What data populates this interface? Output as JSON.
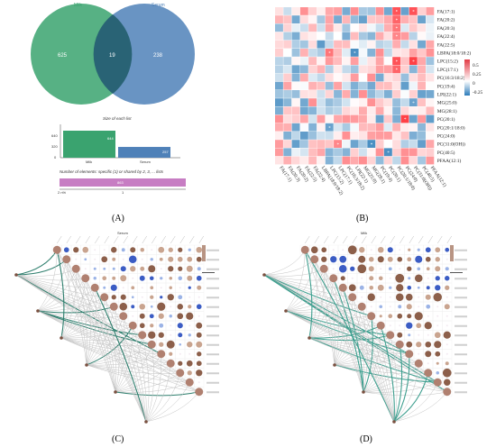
{
  "captions": {
    "a": "(A)",
    "b": "(B)",
    "c": "(C)",
    "d": "(D)"
  },
  "panel_a": {
    "venn": {
      "left_label": "Milk",
      "right_label": "Serum",
      "left_only": "625",
      "overlap": "19",
      "right_only": "238",
      "left_color": "#3aa36f",
      "right_color": "#4f81b8"
    },
    "size_bars": {
      "title": "Size of each list",
      "y_ticks": [
        "640",
        "320",
        "0"
      ],
      "bars": [
        {
          "label": "Milk",
          "value": 644,
          "value_text": "644",
          "color": "#3aa36f"
        },
        {
          "label": "Serum",
          "value": 257,
          "value_text": "257",
          "color": "#4f81b8"
        }
      ]
    },
    "overlap_bar": {
      "title": "Number of elements: specific (1) or shared by 2, 3, ... lists",
      "axis_label": "2 n%",
      "axis_tick": "1",
      "bar_text": "863",
      "color": "#c77dc3"
    }
  },
  "panel_b": {
    "rows": [
      "FA(17:1)",
      "FA(20:2)",
      "FA(20:3)",
      "FA(22:4)",
      "FA(22:5)",
      "LBPA(18:0/18:2)",
      "LPC(15:2)",
      "LPC(17:1)",
      "PC(16:3/18:2)",
      "PC(19:4)",
      "LPI(22:1)",
      "MG(25:0)",
      "MG(28:1)",
      "PC(20:1)",
      "PC(20:1/18:0)",
      "PC(24:0)",
      "PC(31:0(OH))",
      "PC(40:5)",
      "PFAA(12:1)"
    ],
    "cols": [
      "FA(17:1)",
      "FA(20:3)",
      "FA(20:2)",
      "FA(22:5)",
      "FA(22:4)",
      "LBPA(18:0/18:2)",
      "LPC(15:2)",
      "LPC(17:1)",
      "PC(16:3/18:2)",
      "LPI(22:1)",
      "MG(25:0)",
      "MG(28:1)",
      "PC(19:4)",
      "PC(20:1)",
      "PC(20:1/18:0)",
      "PC(24:0)",
      "PC(31:0(OH))",
      "PC(40:5)",
      "PFAA(12:1)"
    ],
    "legend_ticks": [
      "0.5",
      "0.25",
      "0",
      "-0.25"
    ],
    "legend_min": -0.35,
    "legend_max": 0.55,
    "star": "*"
  },
  "panel_c": {
    "title": "Serum",
    "bubble_colors": [
      "#8c5f4a",
      "#c9a48f",
      "#ffffff",
      "#3b5cc4",
      "#9bb3e6"
    ],
    "line_color": "#b8b8b8",
    "accent_line": "#2f7f6e"
  },
  "panel_d": {
    "title": "Milk",
    "bubble_colors": [
      "#8c5f4a",
      "#c9a48f",
      "#ffffff",
      "#3b5cc4",
      "#9bb3e6"
    ],
    "line_color": "#b8b8b8",
    "accent_line": "#3f9f8f"
  }
}
